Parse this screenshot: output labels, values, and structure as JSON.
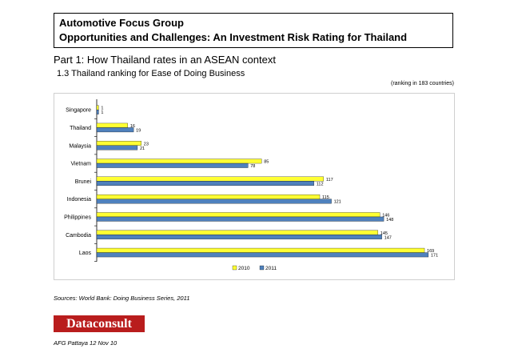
{
  "header": {
    "line1": "Automotive Focus Group",
    "line2": "Opportunities and Challenges: An Investment Risk Rating for Thailand"
  },
  "part_title": "Part 1: How Thailand rates in an ASEAN context",
  "section_title": "1.3 Thailand ranking for Ease of Doing Business",
  "ranking_note": "(ranking in 183 countries)",
  "colors": {
    "series_2010": "#ffff33",
    "series_2011": "#4f81bd",
    "logo_bg": "#b91d1d"
  },
  "chart_data": {
    "type": "bar",
    "orientation": "horizontal",
    "categories": [
      "Singapore",
      "Thailand",
      "Malaysia",
      "Vietnam",
      "Brunei",
      "Indonesia",
      "Philippines",
      "Cambodia",
      "Laos"
    ],
    "series": [
      {
        "name": "2010",
        "values": [
          1,
          16,
          23,
          85,
          117,
          115,
          146,
          145,
          169
        ]
      },
      {
        "name": "2011",
        "values": [
          1,
          19,
          21,
          78,
          112,
          121,
          148,
          147,
          171
        ]
      }
    ],
    "xlim": [
      0,
      183
    ],
    "legend_position": "bottom",
    "grid": false
  },
  "sources": "Sources: World Bank: Doing Business Series,  2011",
  "logo": "Dataconsult",
  "footer": "AFG Pattaya 12 Nov 10"
}
